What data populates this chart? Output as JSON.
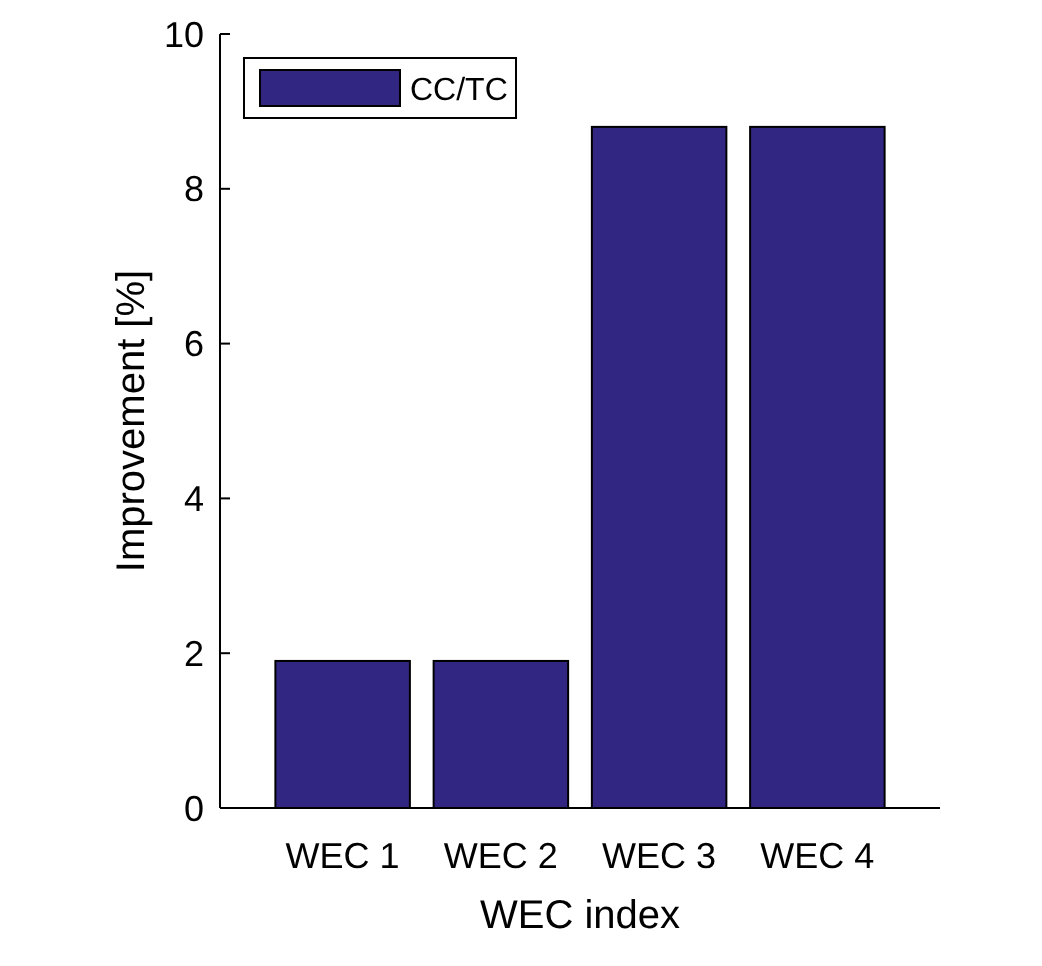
{
  "chart_data": {
    "type": "bar",
    "xlabel": "WEC index",
    "ylabel": "Improvement [%]",
    "categories": [
      "WEC 1",
      "WEC 2",
      "WEC 3",
      "WEC 4"
    ],
    "series": [
      {
        "name": "CC/TC",
        "color": "#312783",
        "values": [
          1.9,
          1.9,
          8.8,
          8.8
        ]
      }
    ],
    "ylim": [
      0,
      10
    ],
    "yticks": [
      0,
      2,
      4,
      6,
      8,
      10
    ],
    "legend": "top left",
    "grid": false
  }
}
